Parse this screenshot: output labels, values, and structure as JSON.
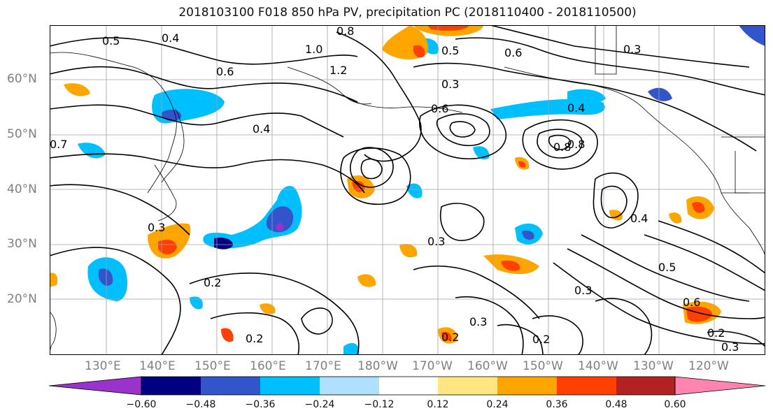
{
  "title": "2018103100 F018 850 hPa PV, precipitation PC (2018110400 - 2018110500)",
  "latitude_labels": [
    "60°N",
    "50°N",
    "40°N",
    "30°N",
    "20°N"
  ],
  "longitude_labels": [
    "130°E",
    "140°E",
    "150°E",
    "160°E",
    "170°E",
    "180°W",
    "170°W",
    "160°W",
    "150°W",
    "140°W",
    "130°W",
    "120°W"
  ],
  "colorbar": {
    "ticks": [
      "−0.60",
      "−0.48",
      "−0.36",
      "−0.24",
      "−0.12",
      "0.12",
      "0.24",
      "0.36",
      "0.48",
      "0.60"
    ],
    "colors": [
      "#9933cc",
      "#000080",
      "#3355cc",
      "#00bfff",
      "#b0e0ff",
      "#ffffff",
      "#ffe680",
      "#ffa500",
      "#ff4000",
      "#b22222",
      "#ff85b0"
    ]
  },
  "contour_labels": [
    "0.5",
    "0.4",
    "0.8",
    "0.6",
    "1.0",
    "1.2",
    "0.7",
    "0.3",
    "0.2",
    "0.5",
    "0.4",
    "0.6",
    "0.8",
    "0.3",
    "0.4",
    "0.3",
    "0.6",
    "0.2",
    "0.3",
    "0.2",
    "0.3",
    "0.2",
    "0.3",
    "0.6",
    "0.2",
    "0.3",
    "0.5",
    "0.4",
    "0.8"
  ]
}
